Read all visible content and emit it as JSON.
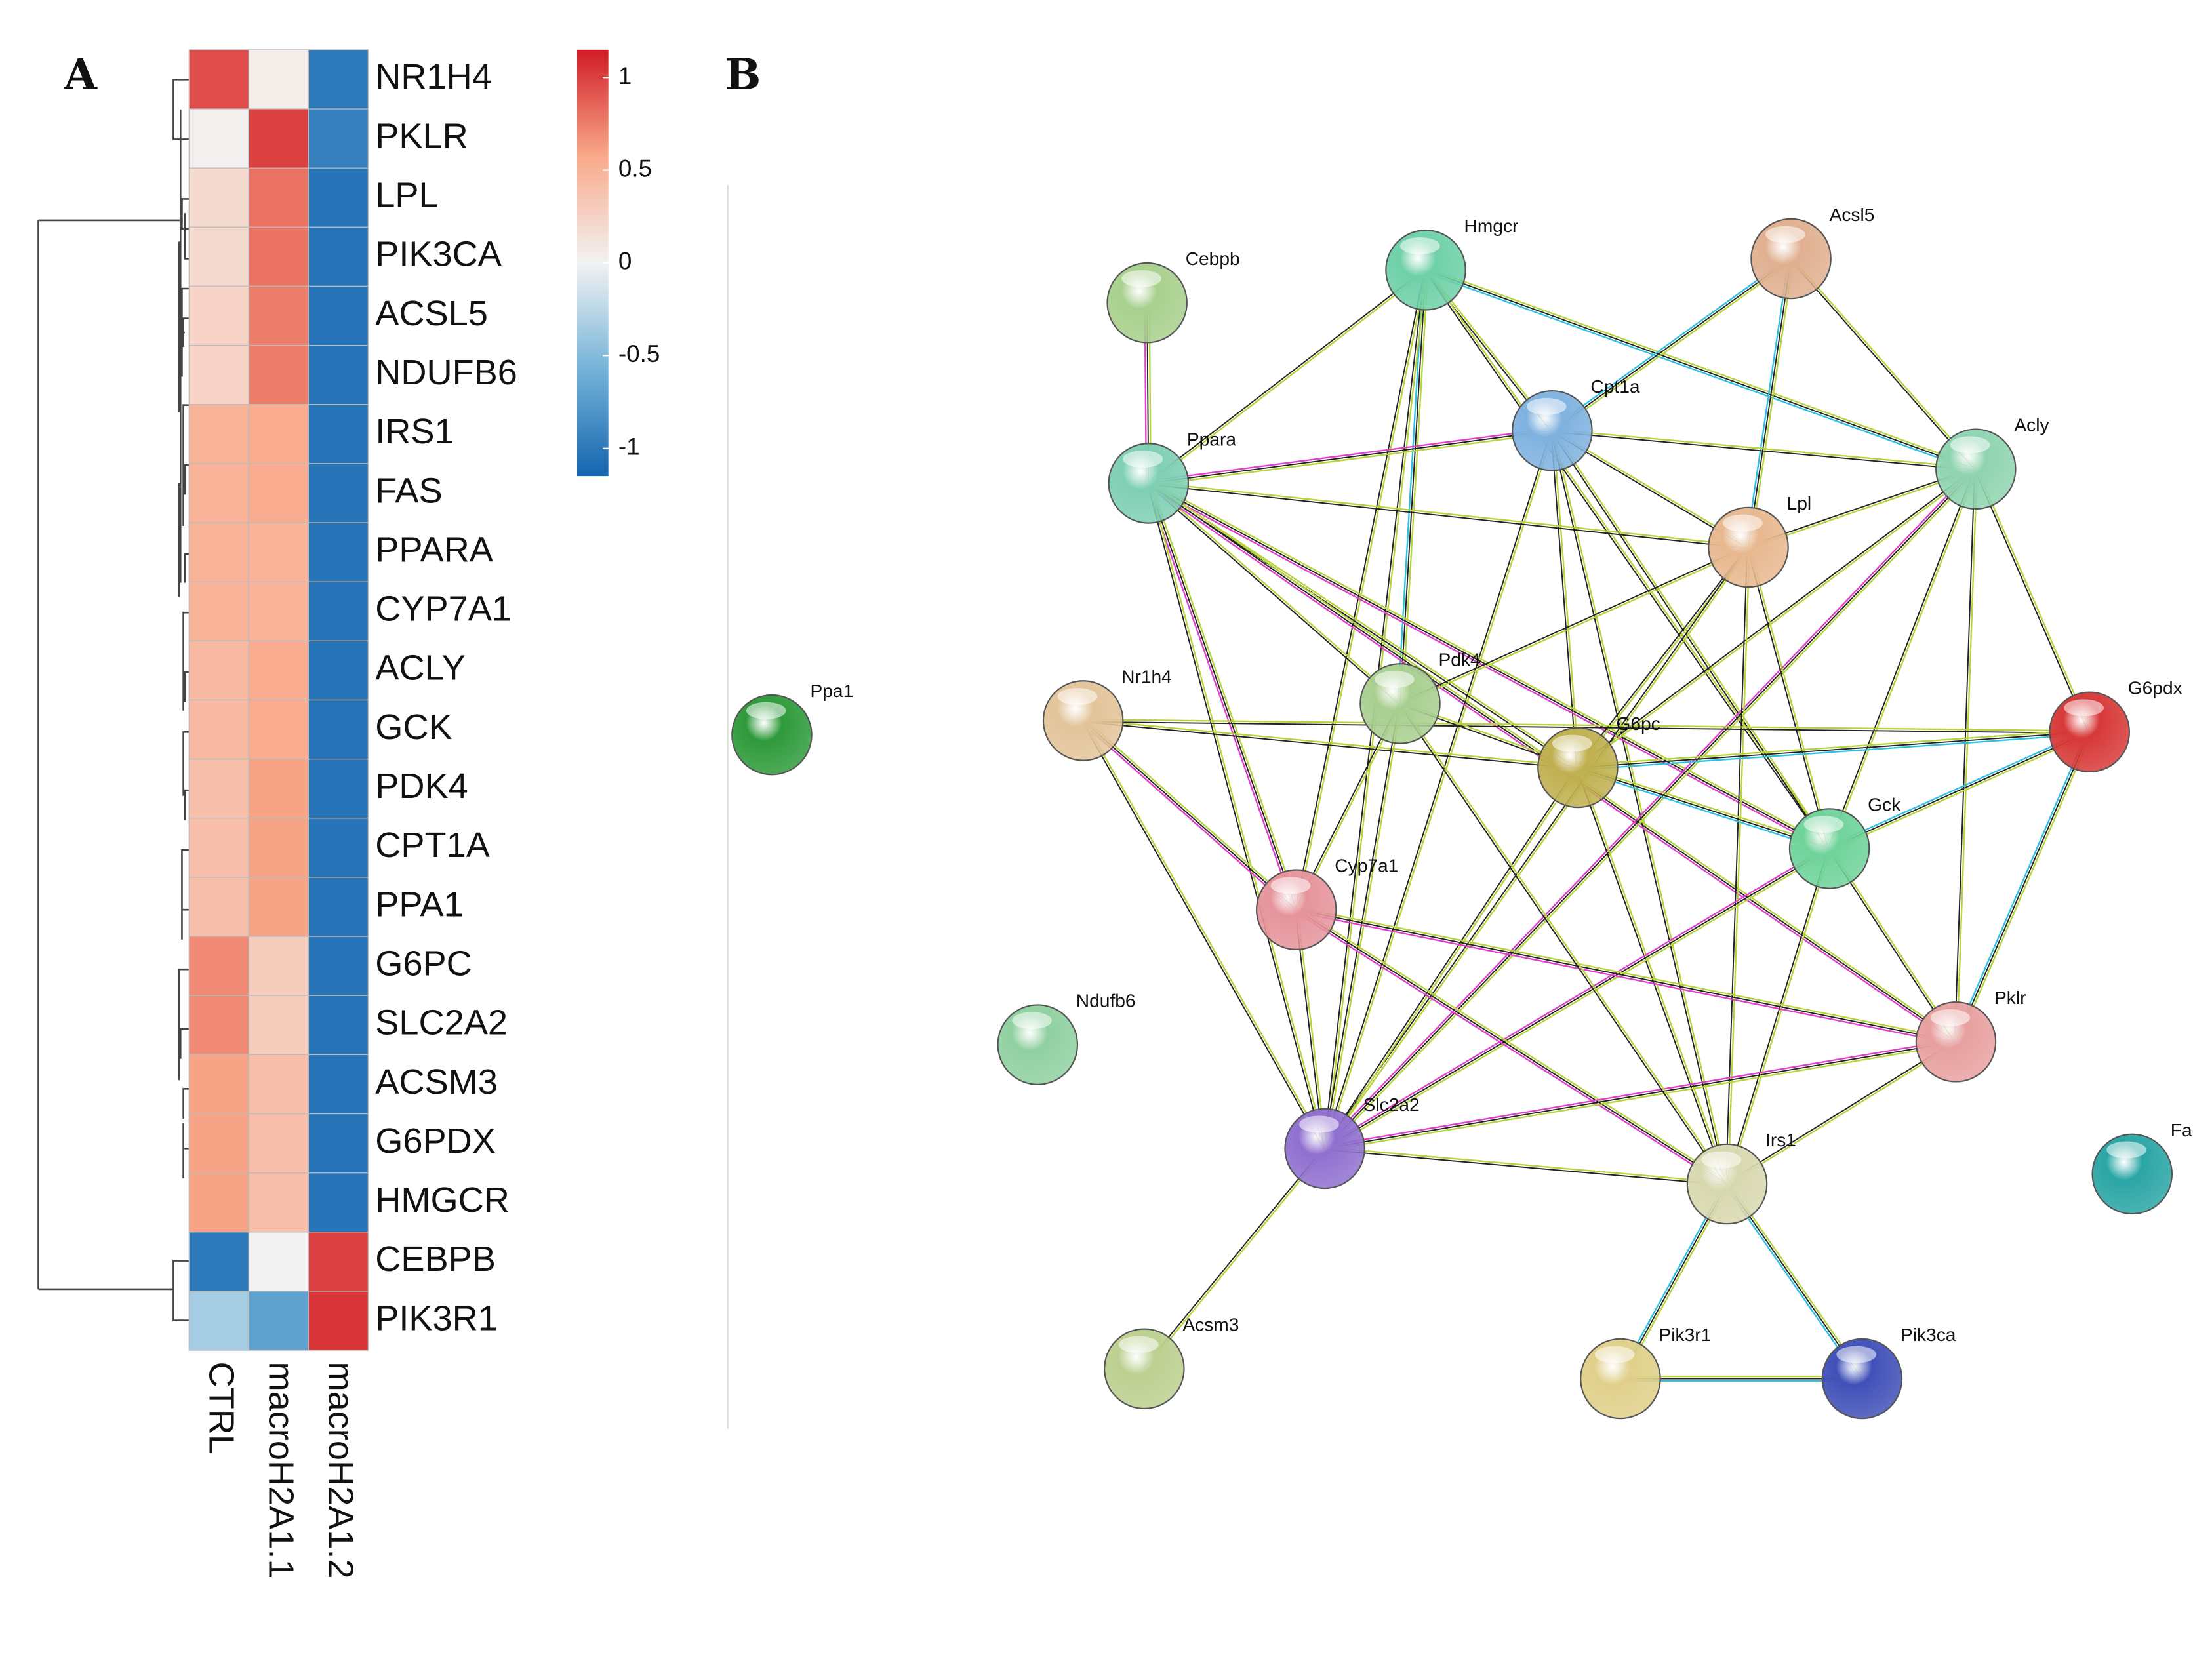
{
  "chart_data": {
    "type": "heatmap",
    "label": "A",
    "rows": [
      "NR1H4",
      "PKLR",
      "LPL",
      "PIK3CA",
      "ACSL5",
      "NDUFB6",
      "IRS1",
      "FAS",
      "PPARA",
      "CYP7A1",
      "ACLY",
      "GCK",
      "PDK4",
      "CPT1A",
      "PPA1",
      "G6PC",
      "SLC2A2",
      "ACSM3",
      "G6PDX",
      "HMGCR",
      "CEBPB",
      "PIK3R1"
    ],
    "columns": [
      "CTRL",
      "macroH2A1.1",
      "macroH2A1.2"
    ],
    "values": [
      [
        0.95,
        0.05,
        -1.0
      ],
      [
        0.02,
        1.0,
        -0.95
      ],
      [
        0.2,
        0.8,
        -1.05
      ],
      [
        0.2,
        0.8,
        -1.05
      ],
      [
        0.25,
        0.75,
        -1.05
      ],
      [
        0.25,
        0.75,
        -1.05
      ],
      [
        0.5,
        0.55,
        -1.05
      ],
      [
        0.5,
        0.55,
        -1.05
      ],
      [
        0.5,
        0.5,
        -1.05
      ],
      [
        0.5,
        0.5,
        -1.05
      ],
      [
        0.45,
        0.55,
        -1.05
      ],
      [
        0.45,
        0.55,
        -1.05
      ],
      [
        0.4,
        0.6,
        -1.05
      ],
      [
        0.4,
        0.6,
        -1.05
      ],
      [
        0.4,
        0.6,
        -1.05
      ],
      [
        0.7,
        0.3,
        -1.05
      ],
      [
        0.7,
        0.3,
        -1.05
      ],
      [
        0.6,
        0.4,
        -1.05
      ],
      [
        0.6,
        0.4,
        -1.05
      ],
      [
        0.6,
        0.4,
        -1.05
      ],
      [
        -1.0,
        0.0,
        1.0
      ],
      [
        -0.35,
        -0.7,
        1.05
      ]
    ],
    "colorbar": {
      "lim": [
        -1.15,
        1.15
      ],
      "ticks": [
        -1,
        -0.5,
        0,
        0.5,
        1
      ],
      "colors": [
        "#1565b0",
        "#74b3d8",
        "#f2f2f2",
        "#f9a98a",
        "#d01c26"
      ]
    }
  },
  "network": {
    "label": "B",
    "nodes": [
      "Cebpb",
      "Hmgcr",
      "Acsl5",
      "Cpt1a",
      "Ppara",
      "Acly",
      "Lpl",
      "Ppa1",
      "Nr1h4",
      "Pdk4",
      "G6pc",
      "G6pdx",
      "Gck",
      "Cyp7a1",
      "Ndufb6",
      "Pklr",
      "Slc2a2",
      "Irs1",
      "Fa",
      "Acsm3",
      "Pik3r1",
      "Pik3ca"
    ]
  }
}
